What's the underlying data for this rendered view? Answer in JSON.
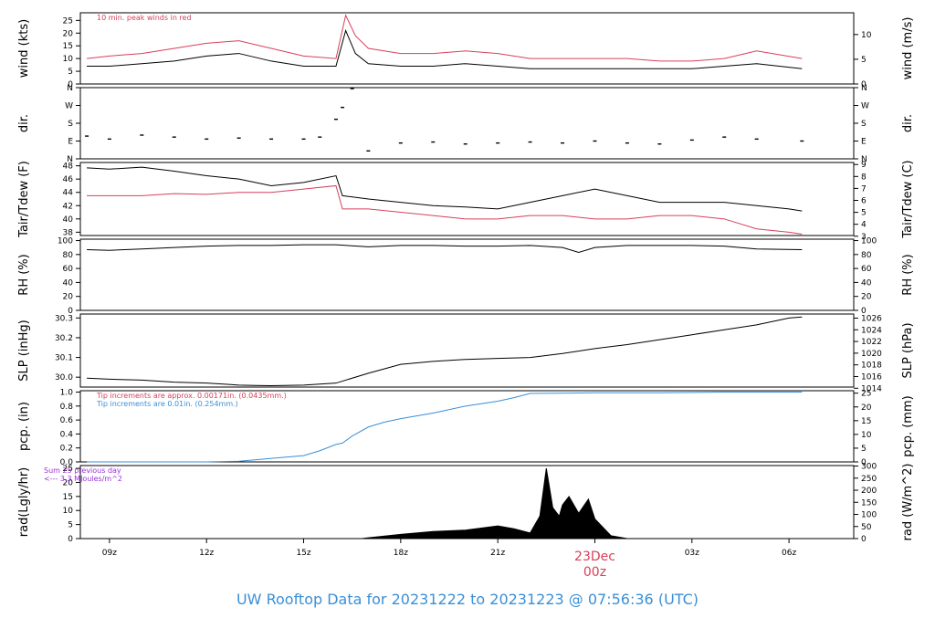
{
  "title": "UW Rooftop Data for 20231222  to  20231223 @ 07:56:36  (UTC)",
  "colors": {
    "black": "#000000",
    "red": "#d6405a",
    "blue": "#3a8fd6",
    "purple": "#9b30d9"
  },
  "chart_data": [
    {
      "type": "line",
      "ylabel_left": "wind (kts)",
      "ylabel_right": "wind (m/s)",
      "left_ticks": [
        0,
        5,
        10,
        15,
        20,
        25
      ],
      "right_ticks": [
        0,
        5,
        10
      ],
      "ylim": [
        0,
        28
      ],
      "right_ylim": [
        0,
        14.4
      ],
      "annotation": "10 min. peak winds in red",
      "series": [
        {
          "color": "black",
          "x": [
            8.3,
            9,
            10,
            11,
            12,
            13,
            14,
            15,
            16,
            16.3,
            16.6,
            17,
            18,
            19,
            20,
            21,
            22,
            23,
            24,
            25,
            26,
            27,
            28,
            29,
            30.4
          ],
          "y": [
            7,
            7,
            8,
            9,
            11,
            12,
            9,
            7,
            7,
            21,
            12,
            8,
            7,
            7,
            8,
            7,
            6,
            6,
            6,
            6,
            6,
            6,
            7,
            8,
            6
          ]
        },
        {
          "color": "red",
          "x": [
            8.3,
            9,
            10,
            11,
            12,
            13,
            14,
            15,
            16,
            16.3,
            16.6,
            17,
            18,
            19,
            20,
            21,
            22,
            23,
            24,
            25,
            26,
            27,
            28,
            29,
            30.4
          ],
          "y": [
            10,
            11,
            12,
            14,
            16,
            17,
            14,
            11,
            10,
            27,
            19,
            14,
            12,
            12,
            13,
            12,
            10,
            10,
            10,
            10,
            9,
            9,
            10,
            13,
            10
          ]
        }
      ]
    },
    {
      "type": "scatter",
      "ylabel_left": "dir.",
      "ylabel_right": "dir.",
      "left_ticks": [
        "N",
        "E",
        "S",
        "W",
        "N"
      ],
      "right_ticks": [
        "N",
        "E",
        "S",
        "W",
        "N"
      ],
      "ylim": [
        0,
        360
      ],
      "series": [
        {
          "color": "black",
          "x": [
            8.3,
            9,
            10,
            11,
            12,
            13,
            14,
            15,
            15.5,
            16,
            16.2,
            16.5,
            17,
            18,
            19,
            20,
            21,
            22,
            23,
            24,
            25,
            26,
            27,
            28,
            29,
            30.4
          ],
          "y": [
            115,
            100,
            120,
            110,
            100,
            105,
            100,
            100,
            110,
            200,
            260,
            355,
            40,
            80,
            85,
            75,
            80,
            85,
            80,
            90,
            80,
            75,
            95,
            110,
            100,
            90
          ]
        }
      ]
    },
    {
      "type": "line",
      "ylabel_left": "Tair/Tdew (F)",
      "ylabel_right": "Tair/Tdew (C)",
      "left_ticks": [
        38,
        40,
        42,
        44,
        46,
        48
      ],
      "right_ticks": [
        3,
        4,
        5,
        6,
        7,
        8,
        9
      ],
      "ylim": [
        37.5,
        48.5
      ],
      "right_ylim": [
        3.06,
        9.17
      ],
      "series": [
        {
          "color": "black",
          "x": [
            8.3,
            9,
            10,
            11,
            12,
            13,
            14,
            15,
            16,
            16.2,
            17,
            18,
            19,
            20,
            21,
            22,
            23,
            24,
            25,
            26,
            27,
            28,
            29,
            30,
            30.4
          ],
          "y": [
            47.7,
            47.5,
            47.8,
            47.2,
            46.5,
            46.0,
            45.0,
            45.5,
            46.5,
            43.5,
            43.0,
            42.5,
            42.0,
            41.8,
            41.5,
            42.5,
            43.5,
            44.5,
            43.5,
            42.5,
            42.5,
            42.5,
            42.0,
            41.5,
            41.2
          ]
        },
        {
          "color": "red",
          "x": [
            8.3,
            9,
            10,
            11,
            12,
            13,
            14,
            15,
            16,
            16.2,
            17,
            18,
            19,
            20,
            21,
            22,
            23,
            24,
            25,
            26,
            27,
            28,
            29,
            30,
            30.4
          ],
          "y": [
            43.5,
            43.5,
            43.5,
            43.8,
            43.7,
            44.0,
            44.0,
            44.5,
            45.0,
            41.5,
            41.5,
            41.0,
            40.5,
            40.0,
            40.0,
            40.5,
            40.5,
            40.0,
            40.0,
            40.5,
            40.5,
            40.0,
            38.5,
            38.0,
            37.7
          ]
        }
      ]
    },
    {
      "type": "line",
      "ylabel_left": "RH (%)",
      "ylabel_right": "RH (%)",
      "left_ticks": [
        0,
        20,
        40,
        60,
        80,
        100
      ],
      "right_ticks": [
        0,
        20,
        40,
        60,
        80,
        100
      ],
      "ylim": [
        0,
        102
      ],
      "series": [
        {
          "color": "black",
          "x": [
            8.3,
            9,
            10,
            11,
            12,
            13,
            14,
            15,
            16,
            17,
            18,
            19,
            20,
            21,
            22,
            23,
            23.5,
            24,
            25,
            26,
            27,
            28,
            29,
            30.4
          ],
          "y": [
            87,
            86,
            88,
            90,
            92,
            93,
            93,
            94,
            94,
            91,
            93,
            93,
            92,
            92,
            93,
            90,
            83,
            90,
            93,
            93,
            93,
            92,
            88,
            87
          ]
        }
      ]
    },
    {
      "type": "line",
      "ylabel_left": "SLP (inHg)",
      "ylabel_right": "SLP (hPa)",
      "left_ticks": [
        30.0,
        30.1,
        30.2,
        30.3
      ],
      "right_ticks": [
        1014,
        1016,
        1018,
        1020,
        1022,
        1024,
        1026
      ],
      "ylim": [
        29.95,
        30.32
      ],
      "right_ylim": [
        1014.2,
        1026.7
      ],
      "series": [
        {
          "color": "black",
          "x": [
            8.3,
            9,
            10,
            11,
            12,
            13,
            13.5,
            14,
            15,
            16,
            17,
            18,
            19,
            20,
            21,
            22,
            23,
            24,
            25,
            26,
            27,
            28,
            29,
            30,
            30.4
          ],
          "y": [
            29.995,
            29.99,
            29.985,
            29.975,
            29.97,
            29.96,
            29.958,
            29.957,
            29.96,
            29.97,
            30.02,
            30.065,
            30.08,
            30.09,
            30.095,
            30.1,
            30.12,
            30.145,
            30.165,
            30.19,
            30.215,
            30.24,
            30.265,
            30.3,
            30.305
          ]
        }
      ]
    },
    {
      "type": "line",
      "ylabel_left": "pcp. (in)",
      "ylabel_right": "pcp. (mm)",
      "left_ticks": [
        0.0,
        0.2,
        0.4,
        0.6,
        0.8,
        1.0
      ],
      "right_ticks": [
        0,
        5,
        10,
        15,
        20,
        25
      ],
      "ylim": [
        0,
        1.02
      ],
      "right_ylim": [
        0,
        25.9
      ],
      "annotations": [
        {
          "text": "Tip increments are approx. 0.00171in. (0.0435mm.)",
          "color": "red"
        },
        {
          "text": "Tip increments are 0.01in. (0.254mm.)",
          "color": "blue"
        }
      ],
      "series": [
        {
          "color": "blue",
          "x": [
            8.3,
            10,
            12,
            13,
            13.5,
            14,
            15,
            15.5,
            16,
            16.2,
            16.5,
            17,
            17.5,
            18,
            19,
            20,
            21,
            21.5,
            22,
            24,
            26,
            28,
            30.4
          ],
          "y": [
            0,
            0,
            0,
            0.01,
            0.03,
            0.05,
            0.09,
            0.16,
            0.25,
            0.27,
            0.37,
            0.5,
            0.57,
            0.62,
            0.7,
            0.8,
            0.87,
            0.92,
            0.98,
            0.99,
            0.99,
            1.0,
            1.0
          ]
        }
      ]
    },
    {
      "type": "area",
      "ylabel_left": "rad(Lgly/hr)",
      "ylabel_right": "rad (W/m^2)",
      "left_ticks": [
        0,
        5,
        10,
        15,
        20,
        25
      ],
      "right_ticks": [
        0,
        50,
        100,
        150,
        200,
        250,
        300
      ],
      "ylim": [
        0,
        26
      ],
      "right_ylim": [
        0,
        302
      ],
      "annotation": "Sum 25 previous day\n<--- 3.3 MJoules/m^2",
      "series": [
        {
          "color": "black",
          "x": [
            16.8,
            17,
            18,
            19,
            20,
            21,
            21.5,
            22,
            22.3,
            22.5,
            22.7,
            22.9,
            23,
            23.2,
            23.5,
            23.8,
            24,
            24.5,
            25
          ],
          "y": [
            0,
            0.3,
            1.5,
            2.5,
            3,
            4.5,
            3.5,
            2,
            8,
            25,
            11,
            8,
            12,
            15,
            9,
            14,
            7,
            1,
            0
          ]
        }
      ]
    }
  ],
  "x_axis": {
    "ticks": [
      {
        "hour": 9,
        "label": "09z"
      },
      {
        "hour": 12,
        "label": "12z"
      },
      {
        "hour": 15,
        "label": "15z"
      },
      {
        "hour": 18,
        "label": "18z"
      },
      {
        "hour": 21,
        "label": "21z"
      },
      {
        "hour": 27,
        "label": "03z"
      },
      {
        "hour": 30,
        "label": "06z"
      }
    ],
    "xlim": [
      8.1,
      32.0
    ],
    "date_marker": {
      "hour": 24,
      "line1": "23Dec",
      "line2": "00z"
    }
  }
}
